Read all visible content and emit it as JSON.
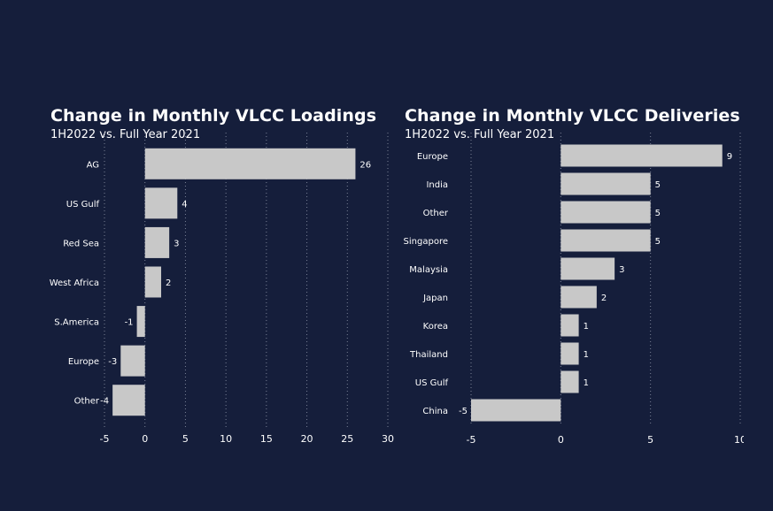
{
  "colors": {
    "background": "#151e3b",
    "bar": "#c8c8c8",
    "text": "#ffffff",
    "gridline": "#7a8196"
  },
  "chart_data": [
    {
      "type": "bar",
      "orientation": "horizontal",
      "title": "Change in Monthly VLCC Loadings",
      "subtitle": "1H2022 vs. Full Year 2021",
      "categories": [
        "AG",
        "US Gulf",
        "Red Sea",
        "West Africa",
        "S.America",
        "Europe",
        "Other"
      ],
      "values": [
        26,
        4,
        3,
        2,
        -1,
        -3,
        -4
      ],
      "value_labels": [
        "26",
        "4",
        "3",
        "2",
        "-1",
        "-3",
        "-4"
      ],
      "xlim": [
        -5,
        30
      ],
      "xticks": [
        -5,
        0,
        5,
        10,
        15,
        20,
        25,
        30
      ],
      "xtick_labels": [
        "-5",
        "0",
        "5",
        "10",
        "15",
        "20",
        "25",
        "30"
      ],
      "grid": true,
      "xlabel": "",
      "ylabel": ""
    },
    {
      "type": "bar",
      "orientation": "horizontal",
      "title": "Change in Monthly VLCC Deliveries",
      "subtitle": "1H2022 vs. Full Year 2021",
      "categories": [
        "Europe",
        "India",
        "Other",
        "Singapore",
        "Malaysia",
        "Japan",
        "Korea",
        "Thailand",
        "US Gulf",
        "China"
      ],
      "values": [
        9,
        5,
        5,
        5,
        3,
        2,
        1,
        1,
        1,
        -5
      ],
      "value_labels": [
        "9",
        "5",
        "5",
        "5",
        "3",
        "2",
        "1",
        "1",
        "1",
        "-5"
      ],
      "xlim": [
        -5,
        10
      ],
      "xticks": [
        -5,
        0,
        5,
        10
      ],
      "xtick_labels": [
        "-5",
        "0",
        "5",
        "10"
      ],
      "grid": true,
      "xlabel": "",
      "ylabel": ""
    }
  ]
}
